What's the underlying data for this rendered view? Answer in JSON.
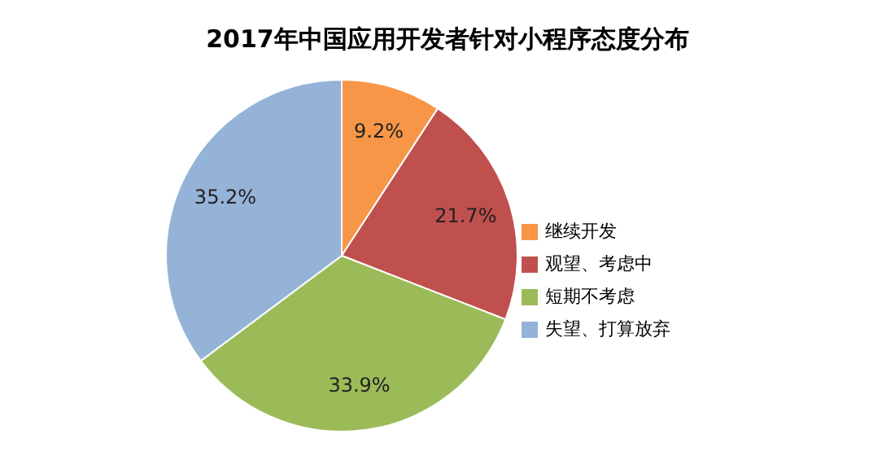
{
  "chart_data": {
    "type": "pie",
    "title": "2017年中国应用开发者针对小程序态度分布",
    "categories": [
      "继续开发",
      "观望、考虑中",
      "短期不考虑",
      "失望、打算放弃"
    ],
    "values": [
      9.2,
      21.7,
      33.9,
      35.2
    ],
    "colors": [
      "#f79646",
      "#c0504d",
      "#9bbb59",
      "#95b3d7"
    ],
    "value_labels": [
      "9.2%",
      "21.7%",
      "33.9%",
      "35.2%"
    ],
    "legend": "right"
  }
}
